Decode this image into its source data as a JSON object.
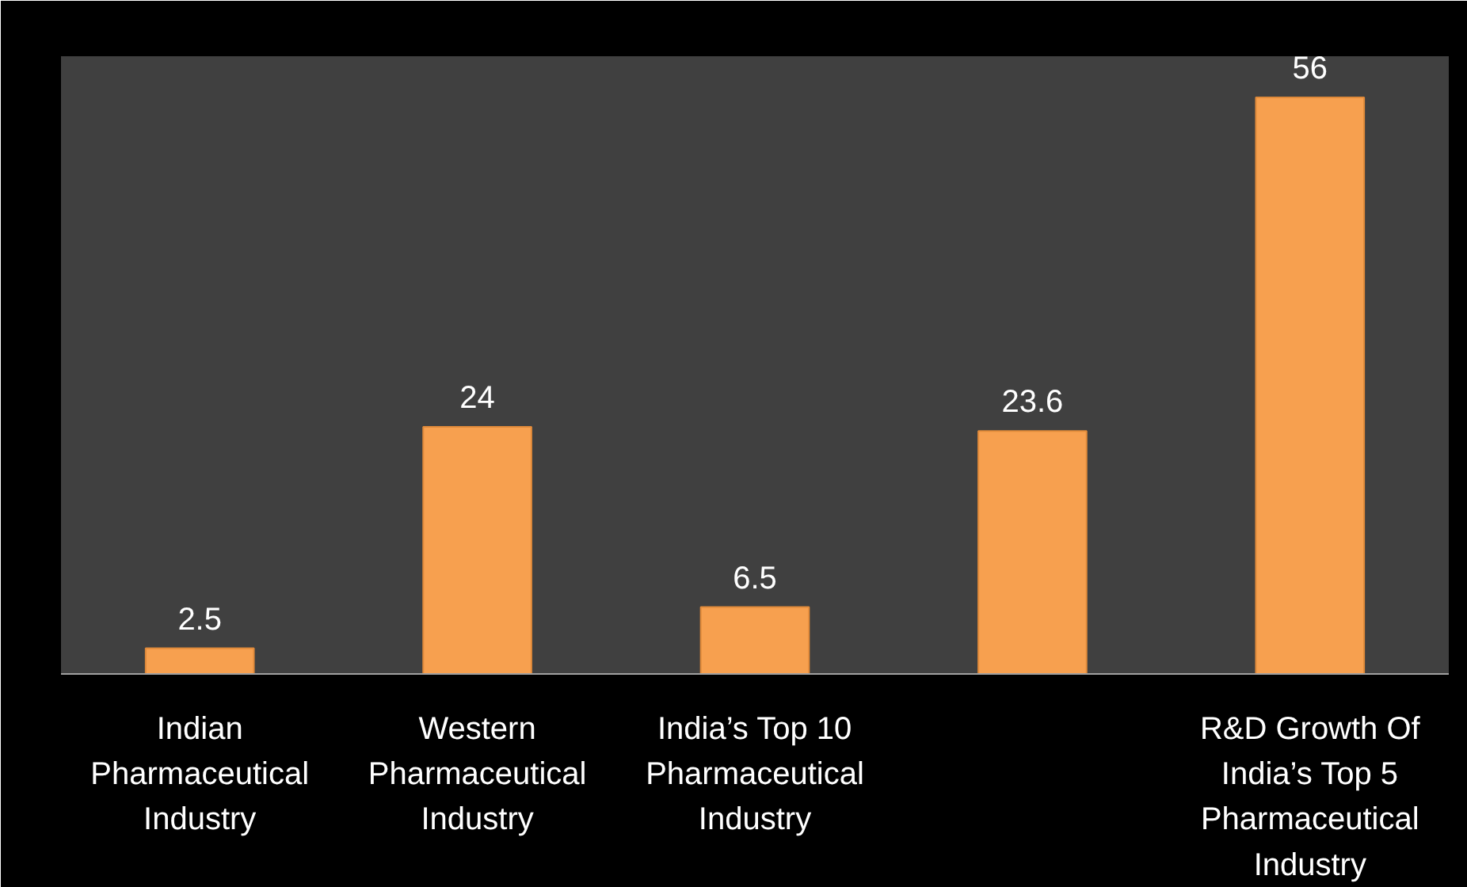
{
  "chart_data": {
    "type": "bar",
    "categories": [
      "Indian Pharmaceutical Industry",
      "Western Pharmaceutical Industry",
      "India’s Top 10 Pharmaceutical Industry",
      null,
      "R&D Growth Of India’s Top 5 Pharmaceutical Industry"
    ],
    "values": [
      2.5,
      24,
      6.5,
      23.6,
      56
    ],
    "color": "#f7a04f",
    "data_labels": true,
    "ylim": [
      0,
      60
    ],
    "tick_labels": "x",
    "grid": false
  }
}
